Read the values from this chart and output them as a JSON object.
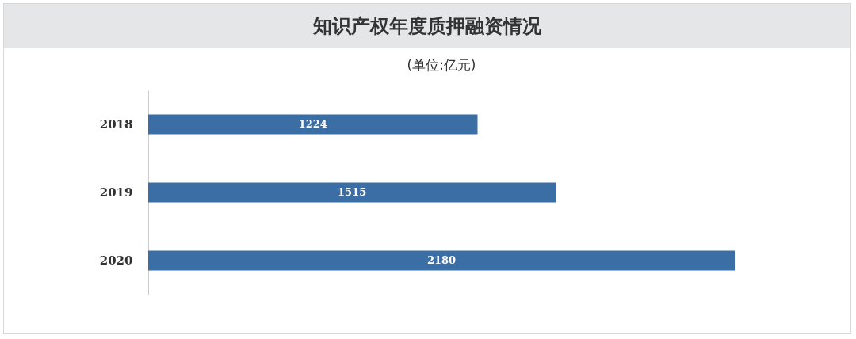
{
  "chart_data": {
    "type": "bar",
    "orientation": "horizontal",
    "title": "知识产权年度质押融资情况",
    "subtitle": "(单位:亿元)",
    "categories": [
      "2018",
      "2019",
      "2020"
    ],
    "values": [
      1224,
      1515,
      2180
    ],
    "color": "#3a6ea5",
    "data_labels": true
  }
}
